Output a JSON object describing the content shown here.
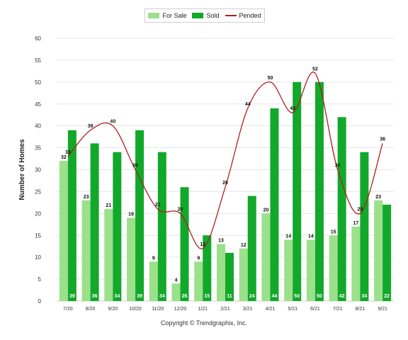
{
  "chart_data": {
    "type": "bar",
    "categories": [
      "7/20",
      "8/20",
      "9/20",
      "10/20",
      "11/20",
      "12/20",
      "1/21",
      "2/21",
      "3/21",
      "4/21",
      "5/21",
      "6/21",
      "7/21",
      "8/21",
      "9/21"
    ],
    "series": [
      {
        "name": "For Sale",
        "kind": "bar",
        "color": "#9be08a",
        "values": [
          32,
          23,
          21,
          19,
          9,
          4,
          9,
          13,
          12,
          20,
          14,
          14,
          15,
          17,
          23
        ]
      },
      {
        "name": "Sold",
        "kind": "bar",
        "color": "#12a82a",
        "values": [
          39,
          36,
          34,
          39,
          34,
          26,
          15,
          11,
          24,
          44,
          50,
          50,
          42,
          34,
          22
        ]
      },
      {
        "name": "Pended",
        "kind": "line",
        "color": "#b02020",
        "values": [
          33,
          39,
          40,
          30,
          21,
          20,
          12,
          26,
          44,
          50,
          43,
          52,
          30,
          20,
          36
        ]
      }
    ],
    "ylabel": "Number of Homes",
    "xlabel": "",
    "ylim": [
      0,
      60
    ],
    "yticks": [
      0,
      5,
      10,
      15,
      20,
      25,
      30,
      35,
      40,
      45,
      50,
      55,
      60
    ],
    "grid": true,
    "legend": "top-center"
  },
  "footer": {
    "copyright": "Copyright © Trendgraphix, Inc."
  }
}
